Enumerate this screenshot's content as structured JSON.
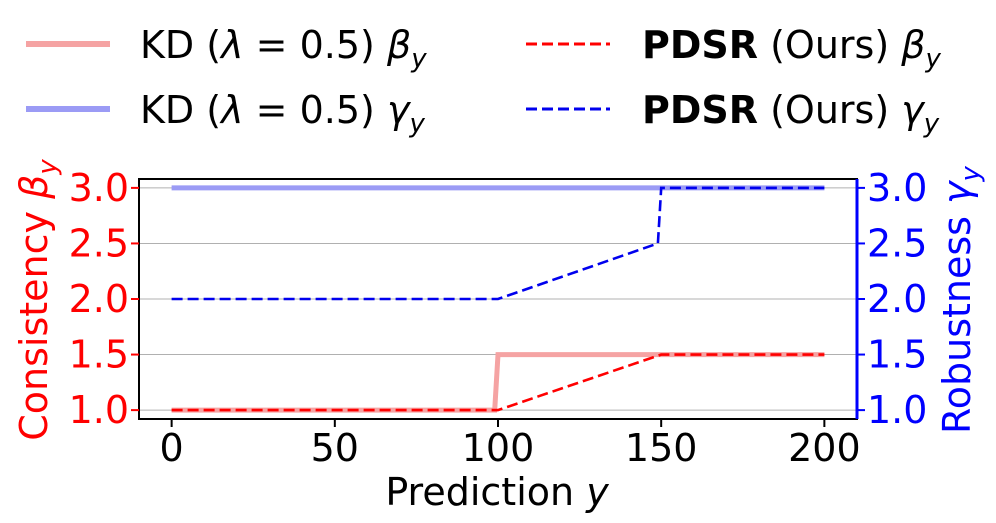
{
  "chart_data": {
    "type": "line",
    "xlabel": "Prediction",
    "xlabel_var": "y",
    "ylabel_left": "Consistency",
    "ylabel_left_var": "β",
    "ylabel_left_sub": "y",
    "ylabel_right": "Robustness",
    "ylabel_right_var": "γ",
    "ylabel_right_sub": "y",
    "xlim": [
      -10,
      210
    ],
    "ylim": [
      0.92,
      3.08
    ],
    "x_ticks": [
      0,
      50,
      100,
      150,
      200
    ],
    "x_tick_labels": [
      "0",
      "50",
      "100",
      "150",
      "200"
    ],
    "y_ticks": [
      1.0,
      1.5,
      2.0,
      2.5,
      3.0
    ],
    "y_tick_labels": [
      "1.0",
      "1.5",
      "2.0",
      "2.5",
      "3.0"
    ],
    "grid": "horizontal",
    "legend_position": "top",
    "colors": {
      "left_axis": "#ff0000",
      "right_axis": "#0000ff",
      "kd_beta": "#f5a3a3",
      "kd_gamma": "#9b9bf5",
      "pdsr_beta": "#ff0000",
      "pdsr_gamma": "#0000ee"
    },
    "series": [
      {
        "name": "KD (λ = 0.5) βy",
        "legend": {
          "pre": "KD (",
          "lambda": "λ",
          "mid": " = 0.5) ",
          "var": "β",
          "sub": "y"
        },
        "style": "solid",
        "color_key": "kd_beta",
        "x": [
          0,
          99,
          100,
          200
        ],
        "y": [
          1.0,
          1.0,
          1.5,
          1.5
        ]
      },
      {
        "name": "KD (λ = 0.5) γy",
        "legend": {
          "pre": "KD (",
          "lambda": "λ",
          "mid": " = 0.5) ",
          "var": "γ",
          "sub": "y"
        },
        "style": "solid",
        "color_key": "kd_gamma",
        "x": [
          0,
          200
        ],
        "y": [
          3.0,
          3.0
        ]
      },
      {
        "name": "PDSR (Ours) βy",
        "legend": {
          "bold": "PDSR",
          "rest": " (Ours) ",
          "var": "β",
          "sub": "y"
        },
        "style": "dashed",
        "color_key": "pdsr_beta",
        "x": [
          0,
          100,
          150,
          200
        ],
        "y": [
          1.0,
          1.0,
          1.5,
          1.5
        ]
      },
      {
        "name": "PDSR (Ours) γy",
        "legend": {
          "bold": "PDSR",
          "rest": " (Ours) ",
          "var": "γ",
          "sub": "y"
        },
        "style": "dashed",
        "color_key": "pdsr_gamma",
        "x": [
          0,
          100,
          149,
          150,
          200
        ],
        "y": [
          2.0,
          2.0,
          2.5,
          3.0,
          3.0
        ]
      }
    ]
  }
}
